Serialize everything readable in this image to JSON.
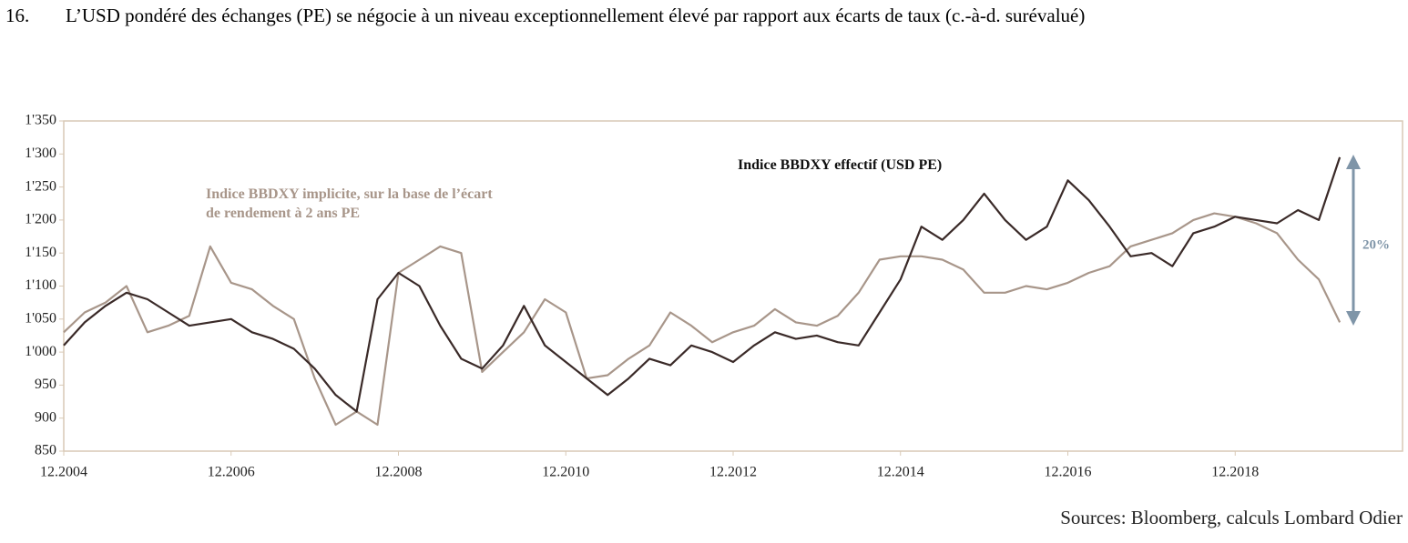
{
  "number": "16.",
  "chart_data": {
    "type": "line",
    "title": "L’USD pondéré des échanges (PE) se négocie à un niveau exceptionnellement élevé par rapport aux écarts de taux (c.-à-d. surévalué)",
    "source": "Sources: Bloomberg, calculs Lombard Odier",
    "annotation": "20%",
    "x": [
      "12.2004",
      "03.2005",
      "06.2005",
      "09.2005",
      "12.2005",
      "03.2006",
      "06.2006",
      "09.2006",
      "12.2006",
      "03.2007",
      "06.2007",
      "09.2007",
      "12.2007",
      "03.2008",
      "06.2008",
      "09.2008",
      "12.2008",
      "03.2009",
      "06.2009",
      "09.2009",
      "12.2009",
      "03.2010",
      "06.2010",
      "09.2010",
      "12.2010",
      "03.2011",
      "06.2011",
      "09.2011",
      "12.2011",
      "03.2012",
      "06.2012",
      "09.2012",
      "12.2012",
      "03.2013",
      "06.2013",
      "09.2013",
      "12.2013",
      "03.2014",
      "06.2014",
      "09.2014",
      "12.2014",
      "03.2015",
      "06.2015",
      "09.2015",
      "12.2015",
      "03.2016",
      "06.2016",
      "09.2016",
      "12.2016",
      "03.2017",
      "06.2017",
      "09.2017",
      "12.2017",
      "03.2018",
      "06.2018",
      "09.2018",
      "12.2018",
      "03.2019",
      "06.2019",
      "09.2019",
      "12.2019",
      "03.2020"
    ],
    "series": [
      {
        "name": "Indice BBDXY implicite, sur la base de l’écart de rendement à 2 ans PE",
        "color": "#a8968a",
        "values": [
          1030,
          1060,
          1075,
          1100,
          1030,
          1040,
          1055,
          1160,
          1105,
          1095,
          1070,
          1050,
          960,
          890,
          910,
          890,
          1120,
          1140,
          1160,
          1150,
          970,
          1000,
          1030,
          1080,
          1060,
          960,
          965,
          990,
          1010,
          1060,
          1040,
          1015,
          1030,
          1040,
          1065,
          1045,
          1040,
          1055,
          1090,
          1140,
          1145,
          1145,
          1140,
          1125,
          1090,
          1090,
          1100,
          1095,
          1105,
          1120,
          1130,
          1160,
          1170,
          1180,
          1200,
          1210,
          1205,
          1195,
          1180,
          1140,
          1110,
          1045
        ]
      },
      {
        "name": "Indice BBDXY effectif (USD PE)",
        "color": "#3a2a28",
        "values": [
          1010,
          1045,
          1070,
          1090,
          1080,
          1060,
          1040,
          1045,
          1050,
          1030,
          1020,
          1005,
          975,
          935,
          910,
          1080,
          1120,
          1100,
          1040,
          990,
          975,
          1010,
          1070,
          1010,
          985,
          960,
          935,
          960,
          990,
          980,
          1010,
          1000,
          985,
          1010,
          1030,
          1020,
          1025,
          1015,
          1010,
          1060,
          1110,
          1190,
          1170,
          1200,
          1240,
          1200,
          1170,
          1190,
          1260,
          1230,
          1190,
          1145,
          1150,
          1130,
          1180,
          1190,
          1205,
          1200,
          1195,
          1215,
          1200,
          1295
        ]
      }
    ],
    "xlim": [
      "12.2004",
      "12.2020"
    ],
    "xticks": [
      "12.2004",
      "12.2006",
      "12.2008",
      "12.2010",
      "12.2012",
      "12.2014",
      "12.2016",
      "12.2018"
    ],
    "ylim": [
      850,
      1350
    ],
    "yticks": [
      850,
      900,
      950,
      {
        "value": 1000,
        "label": "1'000"
      },
      {
        "value": 1050,
        "label": "1'050"
      },
      {
        "value": 1100,
        "label": "1'100"
      },
      {
        "value": 1150,
        "label": "1'150"
      },
      {
        "value": 1200,
        "label": "1'200"
      },
      {
        "value": 1250,
        "label": "1'250"
      },
      {
        "value": 1300,
        "label": "1'300"
      },
      {
        "value": 1350,
        "label": "1'350"
      }
    ]
  }
}
